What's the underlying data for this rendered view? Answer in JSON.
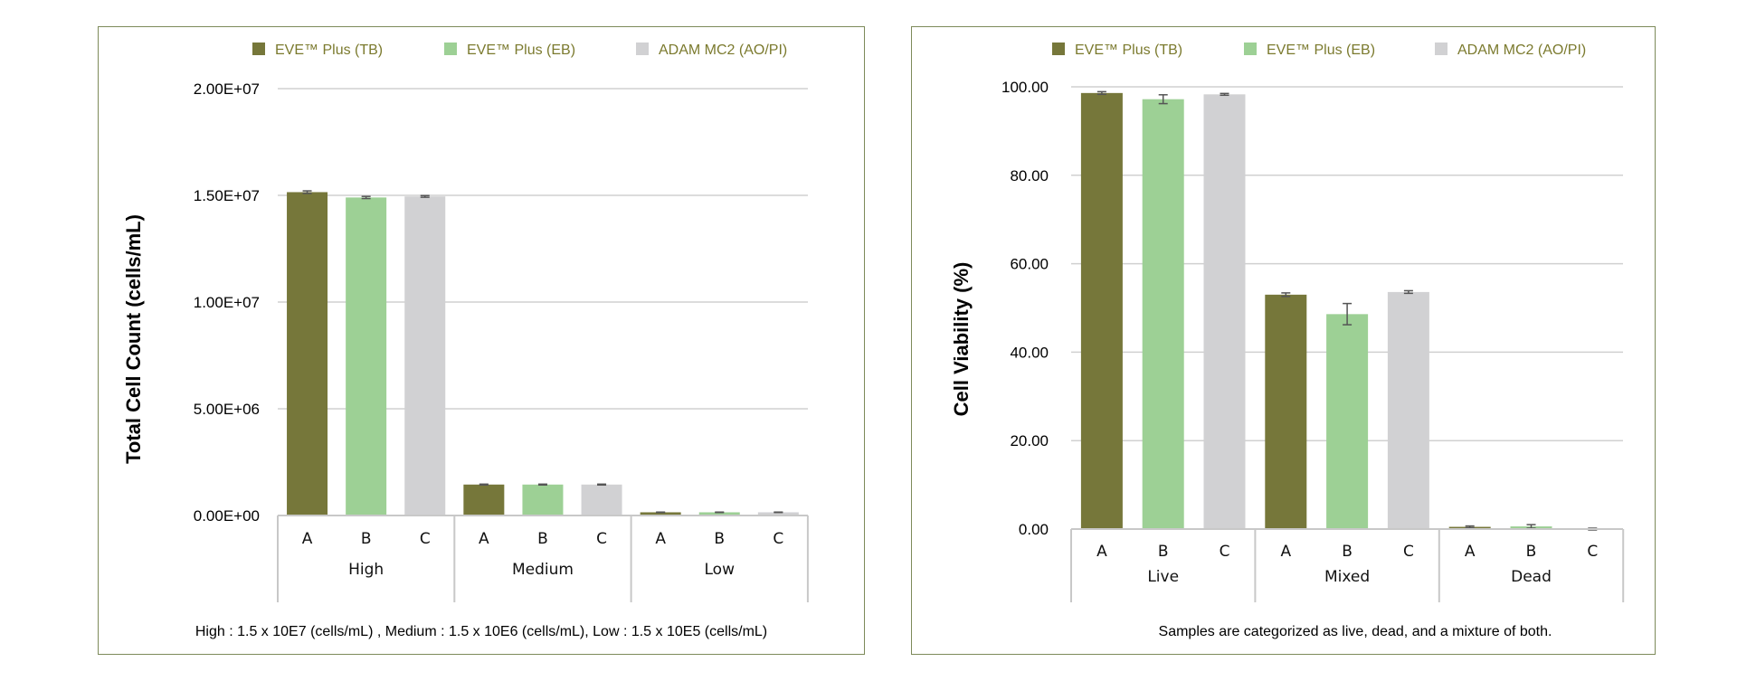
{
  "legend": [
    {
      "label": "EVE™ Plus (TB)",
      "color": "#76773a"
    },
    {
      "label": "EVE™ Plus (EB)",
      "color": "#9dd095"
    },
    {
      "label": "ADAM MC2 (AO/PI)",
      "color": "#d1d1d3"
    }
  ],
  "chart_data": [
    {
      "type": "bar",
      "ylabel": "Total Cell Count (cells/mL)",
      "ylim": [
        0,
        20000000
      ],
      "yticks": [
        "0.00E+00",
        "5.00E+06",
        "1.00E+07",
        "1.50E+07",
        "2.00E+07"
      ],
      "ytick_values": [
        0,
        5000000,
        10000000,
        15000000,
        20000000
      ],
      "groups": [
        "High",
        "Medium",
        "Low"
      ],
      "categories": [
        "A",
        "B",
        "C"
      ],
      "series": [
        {
          "name": "EVE™ Plus (TB)",
          "category": "A",
          "values": [
            15150000,
            1450000,
            150000
          ],
          "errors": [
            60000,
            20000,
            10000
          ]
        },
        {
          "name": "EVE™ Plus (EB)",
          "category": "B",
          "values": [
            14900000,
            1450000,
            150000
          ],
          "errors": [
            50000,
            20000,
            10000
          ]
        },
        {
          "name": "ADAM MC2 (AO/PI)",
          "category": "C",
          "values": [
            14950000,
            1450000,
            150000
          ],
          "errors": [
            40000,
            20000,
            10000
          ]
        }
      ],
      "note": "High : 1.5 x 10E7 (cells/mL) , Medium : 1.5 x 10E6 (cells/mL), Low : 1.5 x 10E5 (cells/mL)"
    },
    {
      "type": "bar",
      "ylabel": "Cell Viability (%)",
      "ylim": [
        0,
        100
      ],
      "yticks": [
        "0.00",
        "20.00",
        "40.00",
        "60.00",
        "80.00",
        "100.00"
      ],
      "ytick_values": [
        0,
        20,
        40,
        60,
        80,
        100
      ],
      "groups": [
        "Live",
        "Mixed",
        "Dead"
      ],
      "categories": [
        "A",
        "B",
        "C"
      ],
      "series": [
        {
          "name": "EVE™ Plus (TB)",
          "category": "A",
          "values": [
            98.6,
            53.0,
            0.5
          ],
          "errors": [
            0.3,
            0.4,
            0.2
          ]
        },
        {
          "name": "EVE™ Plus (EB)",
          "category": "B",
          "values": [
            97.2,
            48.6,
            0.6
          ],
          "errors": [
            1.0,
            2.4,
            0.4
          ]
        },
        {
          "name": "ADAM MC2 (AO/PI)",
          "category": "C",
          "values": [
            98.3,
            53.6,
            0.0
          ],
          "errors": [
            0.2,
            0.3,
            0.2
          ]
        }
      ],
      "note": "Samples are categorized as live, dead, and a mixture of both."
    }
  ]
}
